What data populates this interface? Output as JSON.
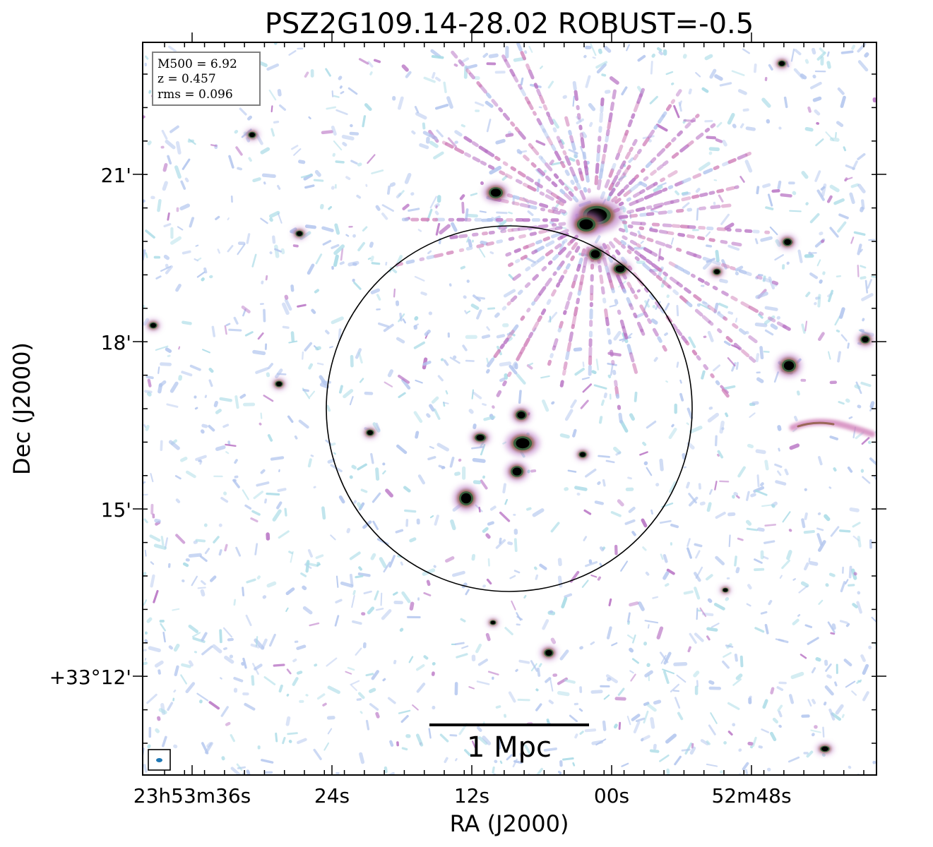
{
  "title": "PSZ2G109.14-28.02 ROBUST=-0.5",
  "axes": {
    "xlabel": "RA (J2000)",
    "ylabel": "Dec (J2000)",
    "xticks": [
      "23h53m36s",
      "24s",
      "12s",
      "00s",
      "52m48s"
    ],
    "yticks": [
      "21'",
      "18'",
      "15'",
      "+33°12'"
    ]
  },
  "info": {
    "m500": "M500 = 6.92",
    "z": "z = 0.457",
    "rms": "rms = 0.096"
  },
  "scalebar": {
    "label": "1 Mpc"
  },
  "colors": {
    "noise_light": "#b3c6ee",
    "noise_teal": "#a9dbe6",
    "emission_purple": "#b873c4",
    "emission_pink": "#d07fb8",
    "emission_brown": "#8a5a3c",
    "emission_green": "#2e5e3a",
    "source_core": "#000000",
    "beam": "#1f77b4"
  }
}
